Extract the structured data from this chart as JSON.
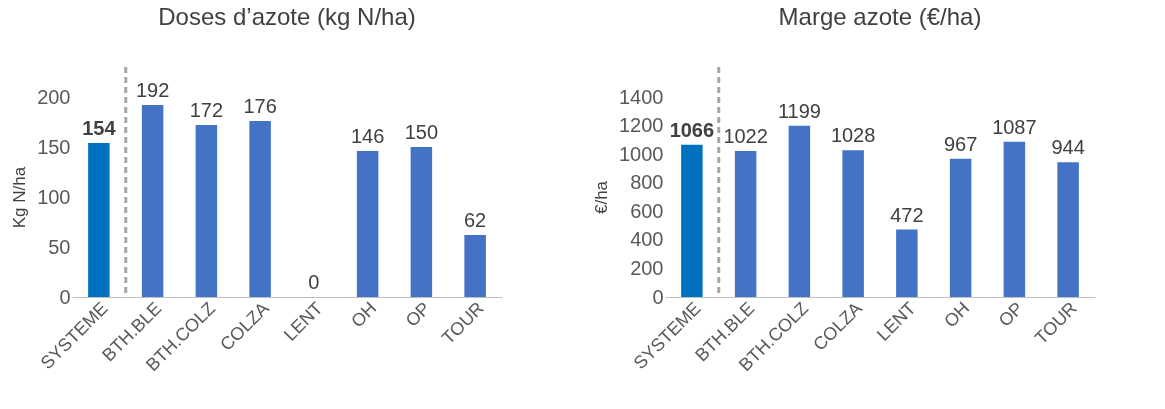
{
  "chart_data": [
    {
      "type": "bar",
      "title": "Doses d’azote (kg N/ha)",
      "ylabel": "Kg N/ha",
      "categories": [
        "SYSTEME",
        "BTH.BLE",
        "BTH.COLZ",
        "COLZA",
        "LENT",
        "OH",
        "OP",
        "TOUR"
      ],
      "values": [
        154,
        192,
        172,
        176,
        0,
        146,
        150,
        62
      ],
      "colors": [
        "#0070c0",
        "#4472c4",
        "#4472c4",
        "#4472c4",
        "#4472c4",
        "#4472c4",
        "#4472c4",
        "#4472c4"
      ],
      "ylim": [
        0,
        200
      ],
      "yticks": [
        0,
        50,
        100,
        150,
        200
      ],
      "data_labels": true,
      "grid": false,
      "ref_lines": [
        {
          "axis": "x",
          "value": "BTH.BLE",
          "color": "#a6a6a6",
          "line_style": "dashed"
        }
      ]
    },
    {
      "type": "bar",
      "title": "Marge azote (€/ha)",
      "ylabel": "€/ha",
      "categories": [
        "SYSTEME",
        "BTH.BLE",
        "BTH.COLZ",
        "COLZA",
        "LENT",
        "OH",
        "OP",
        "TOUR"
      ],
      "values": [
        1066,
        1022,
        1199,
        1028,
        472,
        967,
        1087,
        944
      ],
      "colors": [
        "#0070c0",
        "#4472c4",
        "#4472c4",
        "#4472c4",
        "#4472c4",
        "#4472c4",
        "#4472c4",
        "#4472c4"
      ],
      "ylim": [
        0,
        1400
      ],
      "yticks": [
        0,
        200,
        400,
        600,
        800,
        1000,
        1200,
        1400
      ],
      "data_labels": true,
      "grid": false,
      "ref_lines": [
        {
          "axis": "x",
          "value": "BTH.BLE",
          "color": "#a6a6a6",
          "line_style": "dashed"
        }
      ]
    }
  ]
}
